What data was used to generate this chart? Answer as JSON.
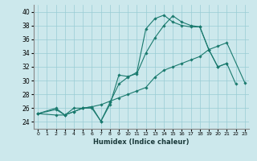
{
  "xlabel": "Humidex (Indice chaleur)",
  "bg_color": "#cce8ec",
  "grid_color": "#99ccd4",
  "line_color": "#1a7a6e",
  "xlim": [
    -0.5,
    23.5
  ],
  "ylim": [
    23,
    41
  ],
  "xticks": [
    0,
    1,
    2,
    3,
    4,
    5,
    6,
    7,
    8,
    9,
    10,
    11,
    12,
    13,
    14,
    15,
    16,
    17,
    18,
    19,
    20,
    21,
    22,
    23
  ],
  "yticks": [
    24,
    26,
    28,
    30,
    32,
    34,
    36,
    38,
    40
  ],
  "line1_x": [
    0,
    2,
    3,
    4,
    5,
    6,
    7,
    8,
    9,
    10,
    11,
    12,
    13,
    14,
    15,
    16,
    17,
    18,
    19,
    20,
    21,
    22,
    23
  ],
  "line1_y": [
    25.2,
    26.0,
    25.0,
    26.0,
    26.0,
    26.2,
    24.1,
    26.5,
    30.8,
    30.6,
    31.0,
    34.0,
    36.2,
    38.0,
    39.4,
    38.5,
    38.0,
    37.8,
    34.5,
    32.0,
    32.5,
    29.5,
    null
  ],
  "line2_x": [
    0,
    2,
    3,
    4,
    5,
    6,
    7,
    8,
    9,
    10,
    11,
    12,
    13,
    14,
    15,
    16,
    17,
    18,
    19,
    20,
    21,
    22,
    23
  ],
  "line2_y": [
    25.2,
    25.0,
    25.0,
    25.5,
    26.0,
    26.0,
    24.1,
    26.8,
    29.5,
    30.5,
    31.2,
    37.5,
    39.0,
    39.5,
    38.5,
    38.0,
    37.8,
    37.8,
    34.5,
    32.0,
    32.5,
    null,
    null
  ],
  "line3_x": [
    0,
    2,
    3,
    4,
    5,
    6,
    7,
    8,
    9,
    10,
    11,
    12,
    13,
    14,
    15,
    16,
    17,
    18,
    19,
    20,
    21,
    22,
    23
  ],
  "line3_y": [
    25.2,
    25.8,
    25.0,
    25.5,
    26.0,
    26.2,
    26.5,
    27.0,
    27.5,
    28.0,
    28.5,
    29.0,
    30.5,
    31.5,
    32.0,
    32.5,
    33.0,
    33.5,
    34.5,
    35.0,
    35.5,
    null,
    29.7
  ]
}
